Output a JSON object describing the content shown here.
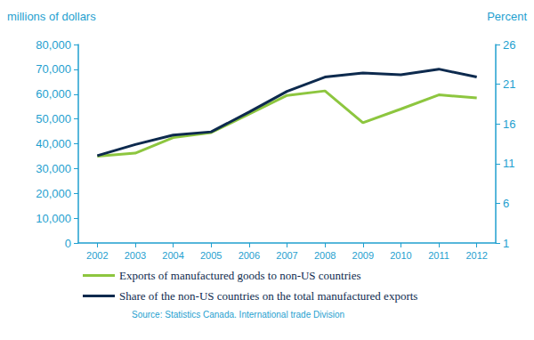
{
  "chart_data": {
    "type": "line",
    "ylabel": "millions of dollars",
    "y2label": "Percent",
    "annotations": [
      "Source: Statistics Canada. International trade Division"
    ],
    "categories": [
      "2002",
      "2003",
      "2004",
      "2005",
      "2006",
      "2007",
      "2008",
      "2009",
      "2010",
      "2011",
      "2012"
    ],
    "series": [
      {
        "name": "Exports of manufactured goods to non-US countries",
        "color": "#8dc63f",
        "values": [
          35000,
          36200,
          42500,
          44500,
          52000,
          59500,
          61300,
          48500,
          54000,
          59700,
          58500
        ]
      },
      {
        "name": "Share of the non-US countries on the total manufactured exports",
        "color": "#0d2a4e",
        "axis": "y2",
        "values": [
          12.0,
          13.4,
          14.6,
          15.0,
          17.5,
          20.1,
          21.9,
          22.4,
          22.2,
          22.9,
          21.9
        ]
      }
    ],
    "ylim": [
      0,
      80000
    ],
    "yticks": [
      0,
      {
        "value": 10000,
        "label": "10,000"
      },
      {
        "value": 20000,
        "label": "20,000"
      },
      {
        "value": 30000,
        "label": "30,000"
      },
      {
        "value": 40000,
        "label": "40,000"
      },
      {
        "value": 50000,
        "label": "50,000"
      },
      {
        "value": 60000,
        "label": "60,000"
      },
      {
        "value": 70000,
        "label": "70,000"
      },
      {
        "value": 80000,
        "label": "80,000"
      }
    ],
    "y2lim": [
      1,
      26
    ],
    "y2ticks": [
      1,
      6,
      11,
      16,
      21,
      26
    ],
    "grid": false,
    "legend": "bottom"
  }
}
